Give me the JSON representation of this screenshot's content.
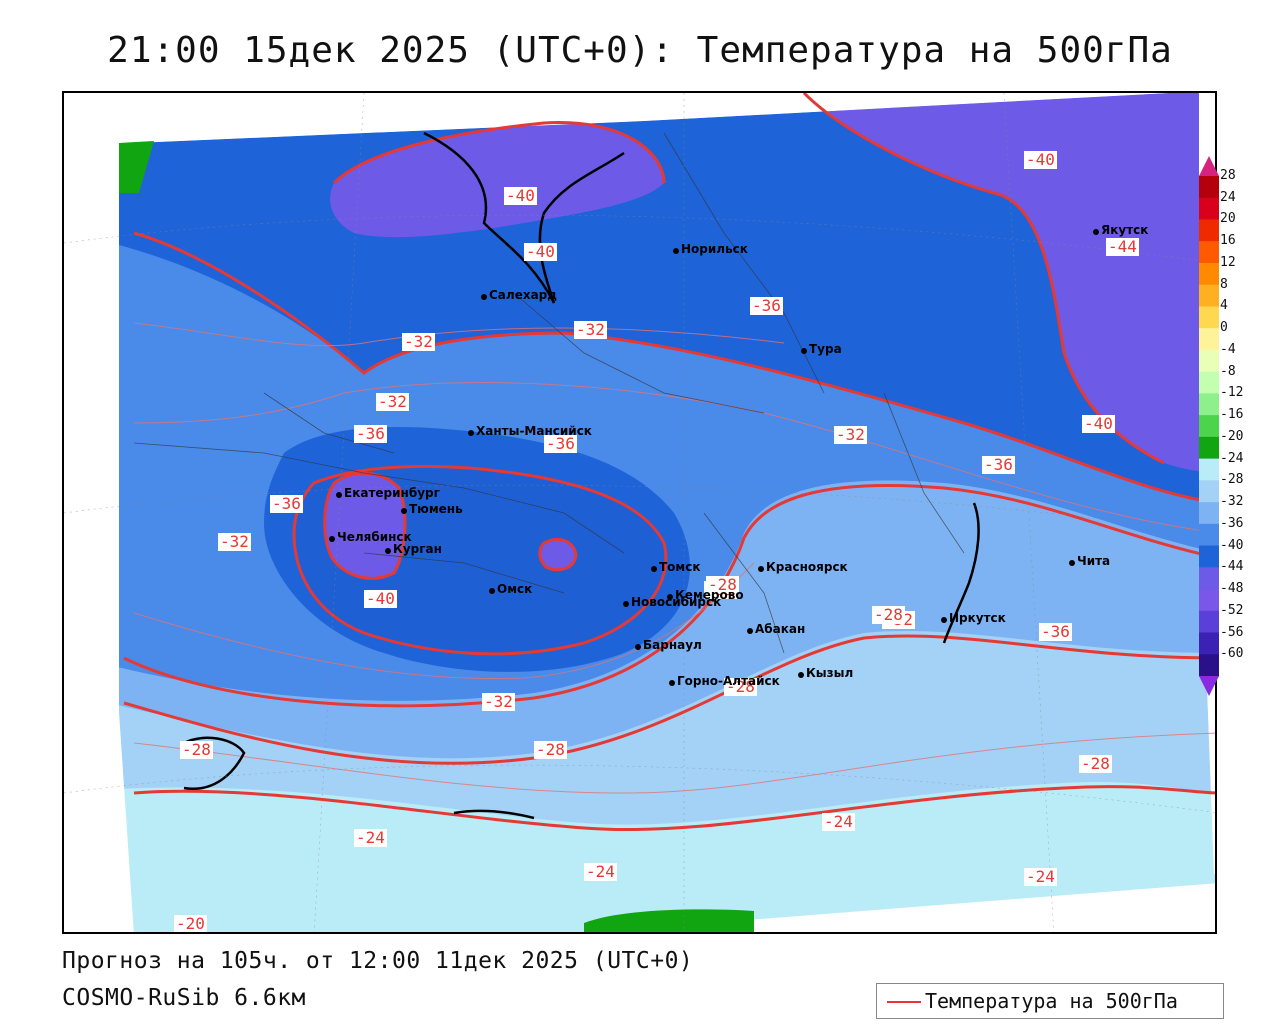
{
  "title": "21:00 15дек 2025 (UTC+0): Температура на 500гПа",
  "footer": {
    "forecast": "Прогноз на 105ч. от 12:00 11дек 2025 (UTC+0)",
    "model": "COSMO-RuSib 6.6км"
  },
  "legend": {
    "label": "Температура на 500гПа",
    "line_color": "#e53935"
  },
  "colorbar": {
    "labels": [
      "28",
      "24",
      "20",
      "16",
      "12",
      "8",
      "4",
      "0",
      "-4",
      "-8",
      "-12",
      "-16",
      "-20",
      "-24",
      "-28",
      "-32",
      "-36",
      "-40",
      "-44",
      "-48",
      "-52",
      "-56",
      "-60"
    ],
    "colors": [
      "#b3000c",
      "#d8001a",
      "#f02a00",
      "#ff5a00",
      "#ff8a00",
      "#ffb020",
      "#ffd850",
      "#fff39a",
      "#e9ffb8",
      "#c4ffb0",
      "#8ef08a",
      "#4dd44d",
      "#12a512",
      "#b9ecf6",
      "#a3d2f6",
      "#7eb3f3",
      "#4a8ae9",
      "#1f63d9",
      "#6d5be8",
      "#7a57e9",
      "#5a3fd8",
      "#3b22b5",
      "#2a1189"
    ]
  },
  "contour_labels": [
    "-40",
    "-36",
    "-40",
    "-32",
    "-32",
    "-36",
    "-32",
    "-36",
    "-32",
    "-36",
    "-40",
    "-40",
    "-44",
    "-40",
    "-36",
    "-32",
    "-36",
    "-32",
    "-32",
    "-28",
    "-28",
    "-28",
    "-32",
    "-28",
    "-28",
    "-24",
    "-24",
    "-24",
    "-24",
    "-28",
    "-20"
  ],
  "cities": [
    "Салехард",
    "Норильск",
    "Тура",
    "Якутск",
    "Ханты-Мансийск",
    "Екатеринбург",
    "Тюмень",
    "Челябинск",
    "Курган",
    "Омск",
    "Новосибирск",
    "Томск",
    "Кемерово",
    "Красноярск",
    "Абакан",
    "Барнаул",
    "Горно-Алтайск",
    "Кызыл",
    "Иркутск",
    "Чита"
  ]
}
